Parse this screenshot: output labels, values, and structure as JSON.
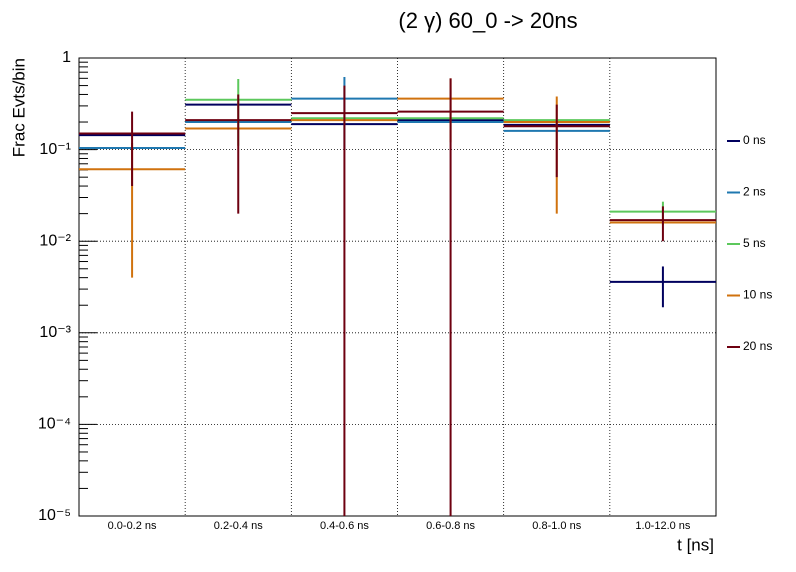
{
  "chart_data": {
    "type": "histogram-errors",
    "title": "(2 γ) 60_0 -> 20ns",
    "x_label": "t [ns]",
    "y_label": "Frac Evts/bin",
    "categories": [
      "0.0-0.2 ns",
      "0.2-0.4 ns",
      "0.4-0.6 ns",
      "0.6-0.8 ns",
      "0.8-1.0 ns",
      "1.0-12.0 ns"
    ],
    "ylim": [
      1e-05,
      1
    ],
    "log_y": true,
    "grid": true,
    "legend": "right",
    "yticks": [
      {
        "value": 1e-05,
        "label": "10⁻⁵"
      },
      {
        "value": 0.0001,
        "label": "10⁻⁴"
      },
      {
        "value": 0.001,
        "label": "10⁻³"
      },
      {
        "value": 0.01,
        "label": "10⁻²"
      },
      {
        "value": 0.1,
        "label": "10⁻¹"
      },
      1
    ],
    "series": [
      {
        "name": "0 ns",
        "color": "#00005e",
        "values": [
          0.144,
          0.31,
          0.19,
          0.21,
          0.186,
          0.0036
        ],
        "errors": [
          0,
          0,
          0,
          0,
          0,
          0.0017
        ]
      },
      {
        "name": "2 ns",
        "color": "#1f78b0",
        "values": [
          0.104,
          0.2,
          0.36,
          0.2,
          0.16,
          null
        ],
        "errors": [
          0,
          0,
          0.26,
          0,
          0,
          null
        ]
      },
      {
        "name": "5 ns",
        "color": "#5cc85c",
        "values": [
          null,
          0.35,
          0.22,
          0.22,
          0.21,
          0.021
        ],
        "errors": [
          null,
          0.24,
          0,
          0,
          0,
          0.006
        ]
      },
      {
        "name": "10 ns",
        "color": "#d0720e",
        "values": [
          0.061,
          0.17,
          0.21,
          0.36,
          0.2,
          0.016
        ],
        "errors": [
          0.057,
          0,
          0,
          0.24,
          0.18,
          0
        ]
      },
      {
        "name": "20 ns",
        "color": "#6e0010",
        "values": [
          0.15,
          0.21,
          0.25,
          0.26,
          0.18,
          0.017
        ],
        "errors": [
          0.11,
          0.19,
          0.25,
          0.34,
          0.13,
          0.007
        ]
      }
    ]
  }
}
